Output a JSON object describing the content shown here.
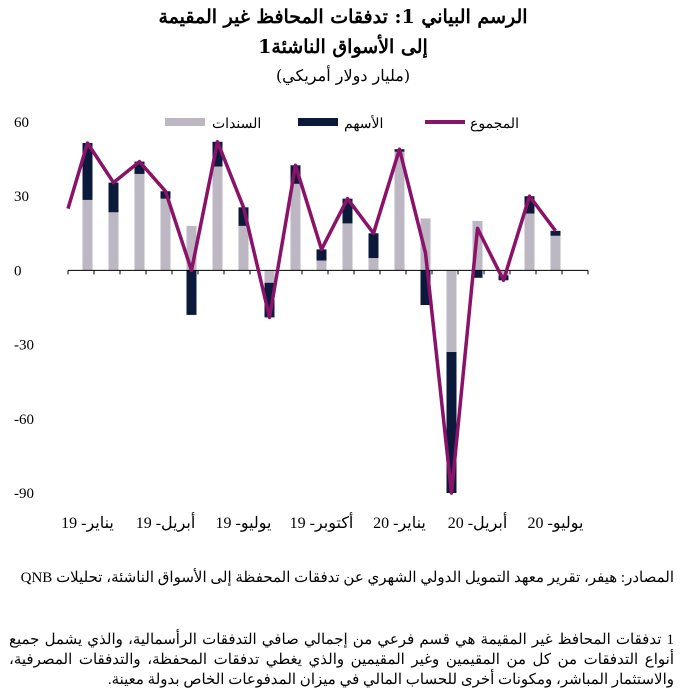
{
  "titles": {
    "line1": "الرسم البياني 1: تدفقات المحافظ غير المقيمة",
    "line2": "إلى الأسواق الناشئة1",
    "unit": "(مليار دولار أمريكي)"
  },
  "colors": {
    "bonds": "#BDB6C3",
    "equities": "#0B1A3A",
    "total": "#8B1269"
  },
  "chart_data": {
    "type": "bar",
    "ylim": [
      -90,
      60
    ],
    "yticks": [
      "60",
      "30",
      "0",
      "-30",
      "-60",
      "-90"
    ],
    "ytick_values": [
      60,
      30,
      0,
      -30,
      -60,
      -90
    ],
    "legend": {
      "bonds": "السندات",
      "equities": "الأسهم",
      "total": "المجموع"
    },
    "months": [
      "Jan-19",
      "Feb-19",
      "Mar-19",
      "Apr-19",
      "May-19",
      "Jun-19",
      "Jul-19",
      "Aug-19",
      "Sep-19",
      "Oct-19",
      "Nov-19",
      "Dec-19",
      "Jan-20",
      "Feb-20",
      "Mar-20",
      "Apr-20",
      "May-20",
      "Jun-20",
      "Jul-20"
    ],
    "x_tick_labels": [
      "يناير- 19",
      "أبريل- 19",
      "يوليو- 19",
      "أكتوبر- 19",
      "يناير- 20",
      "أبريل- 20",
      "يوليو- 20"
    ],
    "series": [
      {
        "name": "السندات",
        "values": [
          28.5,
          23.5,
          39,
          29,
          18,
          42,
          18,
          -5,
          35,
          4,
          19,
          5,
          48,
          21,
          -33,
          20,
          -2,
          23,
          14
        ]
      },
      {
        "name": "الأسهم",
        "values": [
          23,
          12,
          5,
          3,
          -18,
          10,
          7.5,
          -14,
          7.5,
          4.5,
          10,
          10,
          1,
          -14,
          -57,
          -3,
          -2,
          7,
          2
        ]
      },
      {
        "name": "المجموع",
        "values": [
          51.5,
          35.5,
          44,
          32,
          0,
          52,
          25.5,
          -19,
          42.5,
          8.5,
          29,
          15,
          49,
          7,
          -90,
          17,
          -4,
          30,
          16
        ]
      }
    ]
  },
  "footer": {
    "source": "المصادر: هيفر، تقرير معهد التمويل الدولي الشهري عن تدفقات المحفظة إلى الأسواق الناشئة، تحليلات QNB",
    "note": "1 تدفقات المحافظ غير المقيمة هي قسم فرعي من إجمالي صافي التدفقات الرأسمالية، والذي يشمل جميع أنواع التدفقات من كل من المقيمين وغير المقيمين والذي يغطي تدفقات المحفظة، والتدفقات المصرفية، والاستثمار المباشر، ومكونات أخرى للحساب المالي في ميزان المدفوعات الخاص بدولة معينة."
  }
}
